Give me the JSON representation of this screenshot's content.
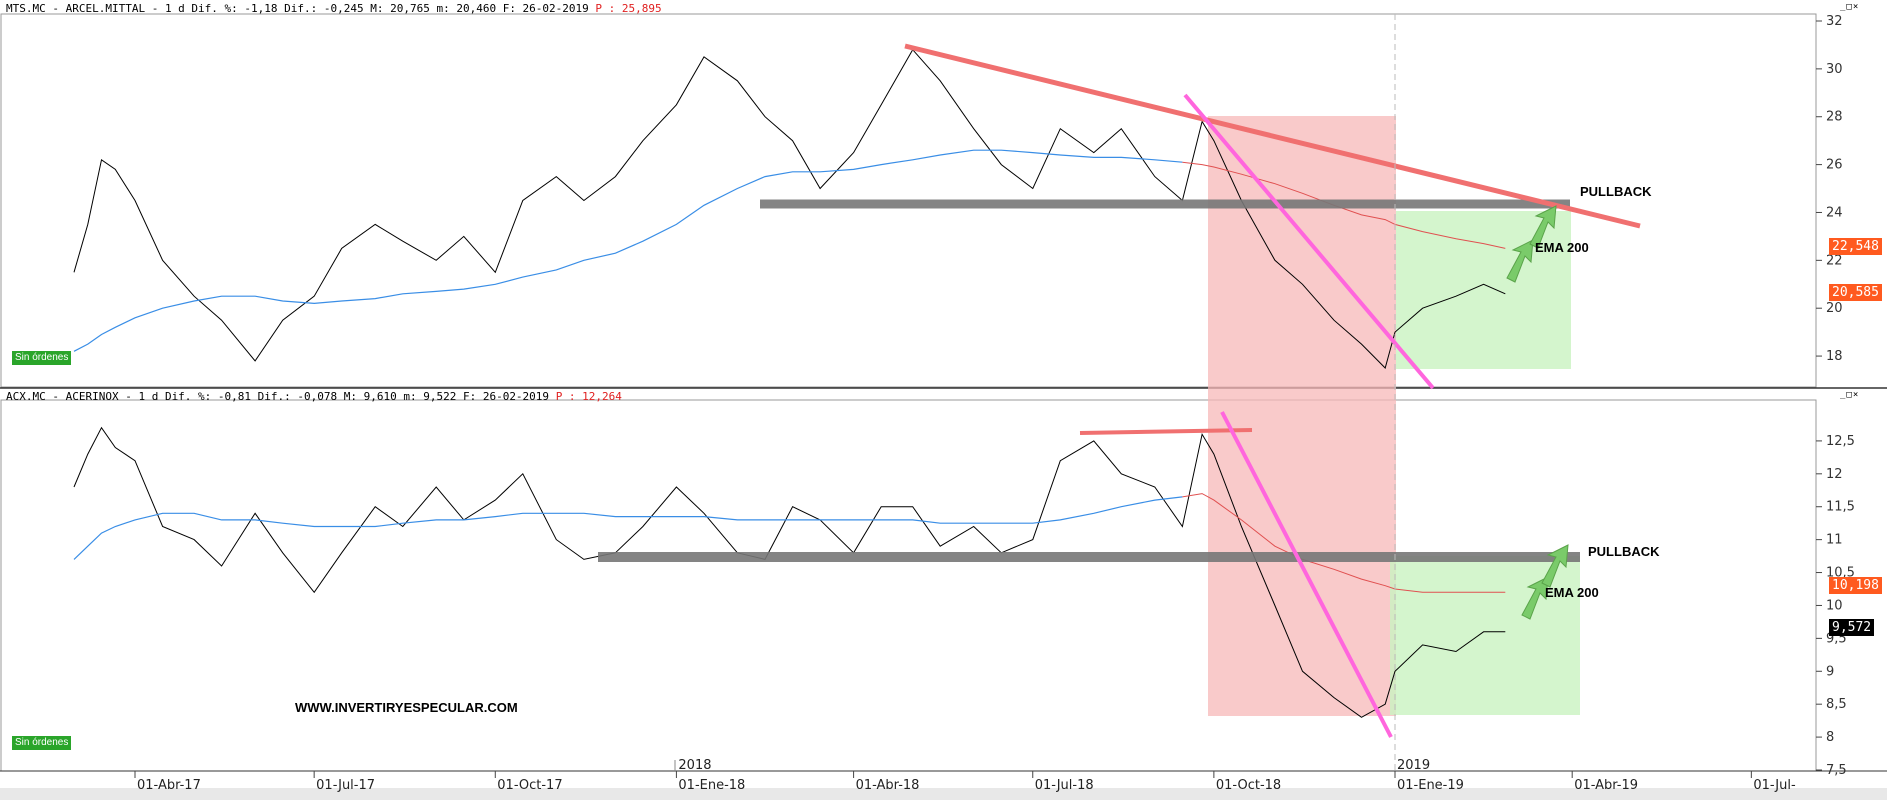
{
  "panels": [
    {
      "id": "mts",
      "header": "MTS.MC - ARCEL.MITTAL -  1 d Dif. %: -1,18 Dif.: -0,245 M: 20,765 m: 20,460 F: 26-02-2019",
      "header_p": "P : 25,895",
      "status_badge": "Sin órdenes",
      "price_tag": "20,585",
      "ema_tag": "22,548",
      "pullback_label": "PULLBACK",
      "ema_label": "EMA 200",
      "y_ticks": [
        "18",
        "20",
        "22",
        "24",
        "26",
        "28",
        "30",
        "32"
      ]
    },
    {
      "id": "acx",
      "header": "ACX.MC - ACERINOX -  1 d Dif. %: -0,81 Dif.: -0,078 M: 9,610 m: 9,522 F: 26-02-2019",
      "header_p": "P : 12,264",
      "status_badge": "Sin órdenes",
      "price_tag": "9,572",
      "ema_tag": "10,198",
      "pullback_label": "PULLBACK",
      "ema_label": "EMA 200",
      "website": "WWW.INVERTIRYESPECULAR.COM",
      "y_ticks": [
        "7,5",
        "8",
        "8,5",
        "9",
        "9,5",
        "10",
        "10,5",
        "11",
        "11,5",
        "12",
        "12,5"
      ]
    }
  ],
  "x_axis": {
    "ticks": [
      "01-Abr-17",
      "01-Jul-17",
      "01-Oct-17",
      "01-Ene-18",
      "01-Abr-18",
      "01-Jul-18",
      "01-Oct-18",
      "01-Ene-19",
      "01-Abr-19",
      "01-Jul-"
    ],
    "years": [
      "2018",
      "2019"
    ]
  },
  "colors": {
    "price": "#000000",
    "ema_long": "#3a8ee6",
    "ema_200": "#e05050",
    "support": "#777777",
    "downtrend": "#f07070",
    "steep_trend": "#ff66dd",
    "red_zone": "#f7b8b8",
    "green_zone": "#c9f2c0",
    "arrow": "#7acb6a",
    "price_tag_top": "#ff5a1f",
    "price_tag_bottom": "#000000",
    "badge": "#2aa52a"
  },
  "chart_data": [
    {
      "type": "line",
      "title": "MTS.MC - ARCEL.MITTAL",
      "ylim": [
        17,
        32
      ],
      "x": [
        "2017-03-01",
        "2017-03-08",
        "2017-03-15",
        "2017-03-22",
        "2017-04-01",
        "2017-04-15",
        "2017-05-01",
        "2017-05-15",
        "2017-06-01",
        "2017-06-15",
        "2017-07-01",
        "2017-07-15",
        "2017-08-01",
        "2017-08-15",
        "2017-09-01",
        "2017-09-15",
        "2017-10-01",
        "2017-10-15",
        "2017-11-01",
        "2017-11-15",
        "2017-12-01",
        "2017-12-15",
        "2018-01-01",
        "2018-01-15",
        "2018-02-01",
        "2018-02-15",
        "2018-03-01",
        "2018-03-15",
        "2018-04-01",
        "2018-04-15",
        "2018-05-01",
        "2018-05-15",
        "2018-06-01",
        "2018-06-15",
        "2018-07-01",
        "2018-07-15",
        "2018-08-01",
        "2018-08-15",
        "2018-09-01",
        "2018-09-15",
        "2018-09-25",
        "2018-10-01",
        "2018-10-15",
        "2018-11-01",
        "2018-11-15",
        "2018-12-01",
        "2018-12-15",
        "2018-12-27",
        "2019-01-01",
        "2019-01-15",
        "2019-02-01",
        "2019-02-15",
        "2019-02-26"
      ],
      "series": [
        {
          "name": "Precio",
          "values": [
            21.5,
            23.5,
            26.2,
            25.8,
            24.5,
            22.0,
            20.5,
            19.5,
            17.8,
            19.5,
            20.5,
            22.5,
            23.5,
            22.8,
            22.0,
            23.0,
            21.5,
            24.5,
            25.5,
            24.5,
            25.5,
            27.0,
            28.5,
            30.5,
            29.5,
            28.0,
            27.0,
            25.0,
            26.5,
            28.5,
            30.8,
            29.5,
            27.5,
            26.0,
            25.0,
            27.5,
            26.5,
            27.5,
            25.5,
            24.5,
            27.8,
            27.0,
            24.5,
            22.0,
            21.0,
            19.5,
            18.5,
            17.5,
            19.0,
            20.0,
            20.5,
            21.0,
            20.6
          ]
        },
        {
          "name": "EMA",
          "values": [
            18.2,
            18.5,
            18.9,
            19.2,
            19.6,
            20.0,
            20.3,
            20.5,
            20.5,
            20.3,
            20.2,
            20.3,
            20.4,
            20.6,
            20.7,
            20.8,
            21.0,
            21.3,
            21.6,
            22.0,
            22.3,
            22.8,
            23.5,
            24.3,
            25.0,
            25.5,
            25.7,
            25.7,
            25.8,
            26.0,
            26.2,
            26.4,
            26.6,
            26.6,
            26.5,
            26.4,
            26.3,
            26.3,
            26.2,
            26.1,
            26.0,
            25.9,
            25.6,
            25.2,
            24.8,
            24.3,
            23.9,
            23.7,
            23.5,
            23.2,
            22.9,
            22.7,
            22.5
          ]
        }
      ],
      "annotations": [
        "PULLBACK",
        "EMA 200"
      ]
    },
    {
      "type": "line",
      "title": "ACX.MC - ACERINOX",
      "ylim": [
        7.5,
        13.0
      ],
      "x": [
        "2017-03-01",
        "2017-03-08",
        "2017-03-15",
        "2017-03-22",
        "2017-04-01",
        "2017-04-15",
        "2017-05-01",
        "2017-05-15",
        "2017-06-01",
        "2017-06-15",
        "2017-07-01",
        "2017-07-15",
        "2017-08-01",
        "2017-08-15",
        "2017-09-01",
        "2017-09-15",
        "2017-10-01",
        "2017-10-15",
        "2017-11-01",
        "2017-11-15",
        "2017-12-01",
        "2017-12-15",
        "2018-01-01",
        "2018-01-15",
        "2018-02-01",
        "2018-02-15",
        "2018-03-01",
        "2018-03-15",
        "2018-04-01",
        "2018-04-15",
        "2018-05-01",
        "2018-05-15",
        "2018-06-01",
        "2018-06-15",
        "2018-07-01",
        "2018-07-15",
        "2018-08-01",
        "2018-08-15",
        "2018-09-01",
        "2018-09-15",
        "2018-09-25",
        "2018-10-01",
        "2018-10-15",
        "2018-11-01",
        "2018-11-15",
        "2018-12-01",
        "2018-12-15",
        "2018-12-27",
        "2019-01-01",
        "2019-01-15",
        "2019-02-01",
        "2019-02-15",
        "2019-02-26"
      ],
      "series": [
        {
          "name": "Precio",
          "values": [
            11.8,
            12.3,
            12.7,
            12.4,
            12.2,
            11.2,
            11.0,
            10.6,
            11.4,
            10.8,
            10.2,
            10.8,
            11.5,
            11.2,
            11.8,
            11.3,
            11.6,
            12.0,
            11.0,
            10.7,
            10.8,
            11.2,
            11.8,
            11.4,
            10.8,
            10.7,
            11.5,
            11.3,
            10.8,
            11.5,
            11.5,
            10.9,
            11.2,
            10.8,
            11.0,
            12.2,
            12.5,
            12.0,
            11.8,
            11.2,
            12.6,
            12.3,
            11.2,
            10.0,
            9.0,
            8.6,
            8.3,
            8.5,
            9.0,
            9.4,
            9.3,
            9.6,
            9.6
          ]
        },
        {
          "name": "EMA",
          "values": [
            10.7,
            10.9,
            11.1,
            11.2,
            11.3,
            11.4,
            11.4,
            11.3,
            11.3,
            11.25,
            11.2,
            11.2,
            11.2,
            11.25,
            11.3,
            11.3,
            11.35,
            11.4,
            11.4,
            11.4,
            11.35,
            11.35,
            11.35,
            11.35,
            11.3,
            11.3,
            11.3,
            11.3,
            11.3,
            11.3,
            11.3,
            11.25,
            11.25,
            11.25,
            11.25,
            11.3,
            11.4,
            11.5,
            11.6,
            11.65,
            11.7,
            11.6,
            11.3,
            10.9,
            10.7,
            10.55,
            10.4,
            10.3,
            10.25,
            10.2,
            10.2,
            10.2,
            10.2
          ]
        }
      ],
      "annotations": [
        "PULLBACK",
        "EMA 200"
      ]
    }
  ]
}
